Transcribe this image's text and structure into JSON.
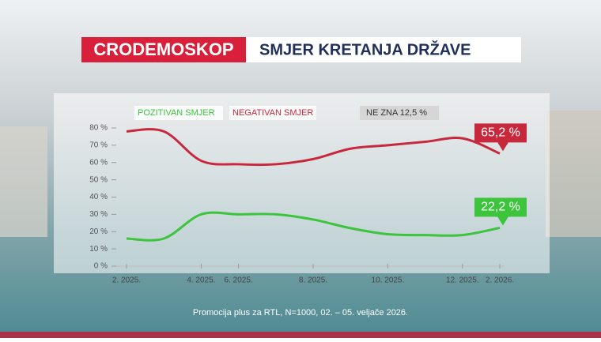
{
  "chart_data": {
    "type": "line",
    "brand": "CRODEMOSKOP",
    "title": "SMJER KRETANJA DRŽAVE",
    "annotation": "NE ZNA 12,5 %",
    "source": "Promocija plus za RTL, N=1000, 02. – 05. veljače 2026.",
    "categories": [
      "2. 2025.",
      null,
      "4. 2025.",
      "6. 2025.",
      null,
      "8. 2025.",
      null,
      "10. 2025.",
      null,
      "12. 2025.",
      "2. 2026."
    ],
    "series": [
      {
        "name": "POZITIVAN SMJER",
        "color": "#3cc43c",
        "values": [
          16,
          16,
          30,
          30,
          30,
          27,
          22,
          18.5,
          18,
          18,
          22.2
        ],
        "value_labels": [
          null,
          null,
          null,
          null,
          null,
          null,
          null,
          null,
          null,
          null,
          "22,2 %"
        ]
      },
      {
        "name": "NEGATIVAN SMJER",
        "color": "#c8283c",
        "values": [
          78,
          78,
          61,
          59,
          59,
          62,
          68,
          70,
          72,
          74,
          65.2
        ],
        "value_labels": [
          null,
          null,
          null,
          null,
          null,
          null,
          null,
          null,
          null,
          null,
          "65,2 %"
        ]
      }
    ],
    "ylim": [
      0,
      80
    ],
    "yticks": [
      {
        "value": 0,
        "label": "0 %"
      },
      {
        "value": 10,
        "label": "10 %"
      },
      {
        "value": 20,
        "label": "20 %"
      },
      {
        "value": 30,
        "label": "30 %"
      },
      {
        "value": 40,
        "label": "40 %"
      },
      {
        "value": 50,
        "label": "50 %"
      },
      {
        "value": 60,
        "label": "60 %"
      },
      {
        "value": 70,
        "label": "70 %"
      },
      {
        "value": 80,
        "label": "80 %"
      }
    ],
    "grid": false
  }
}
